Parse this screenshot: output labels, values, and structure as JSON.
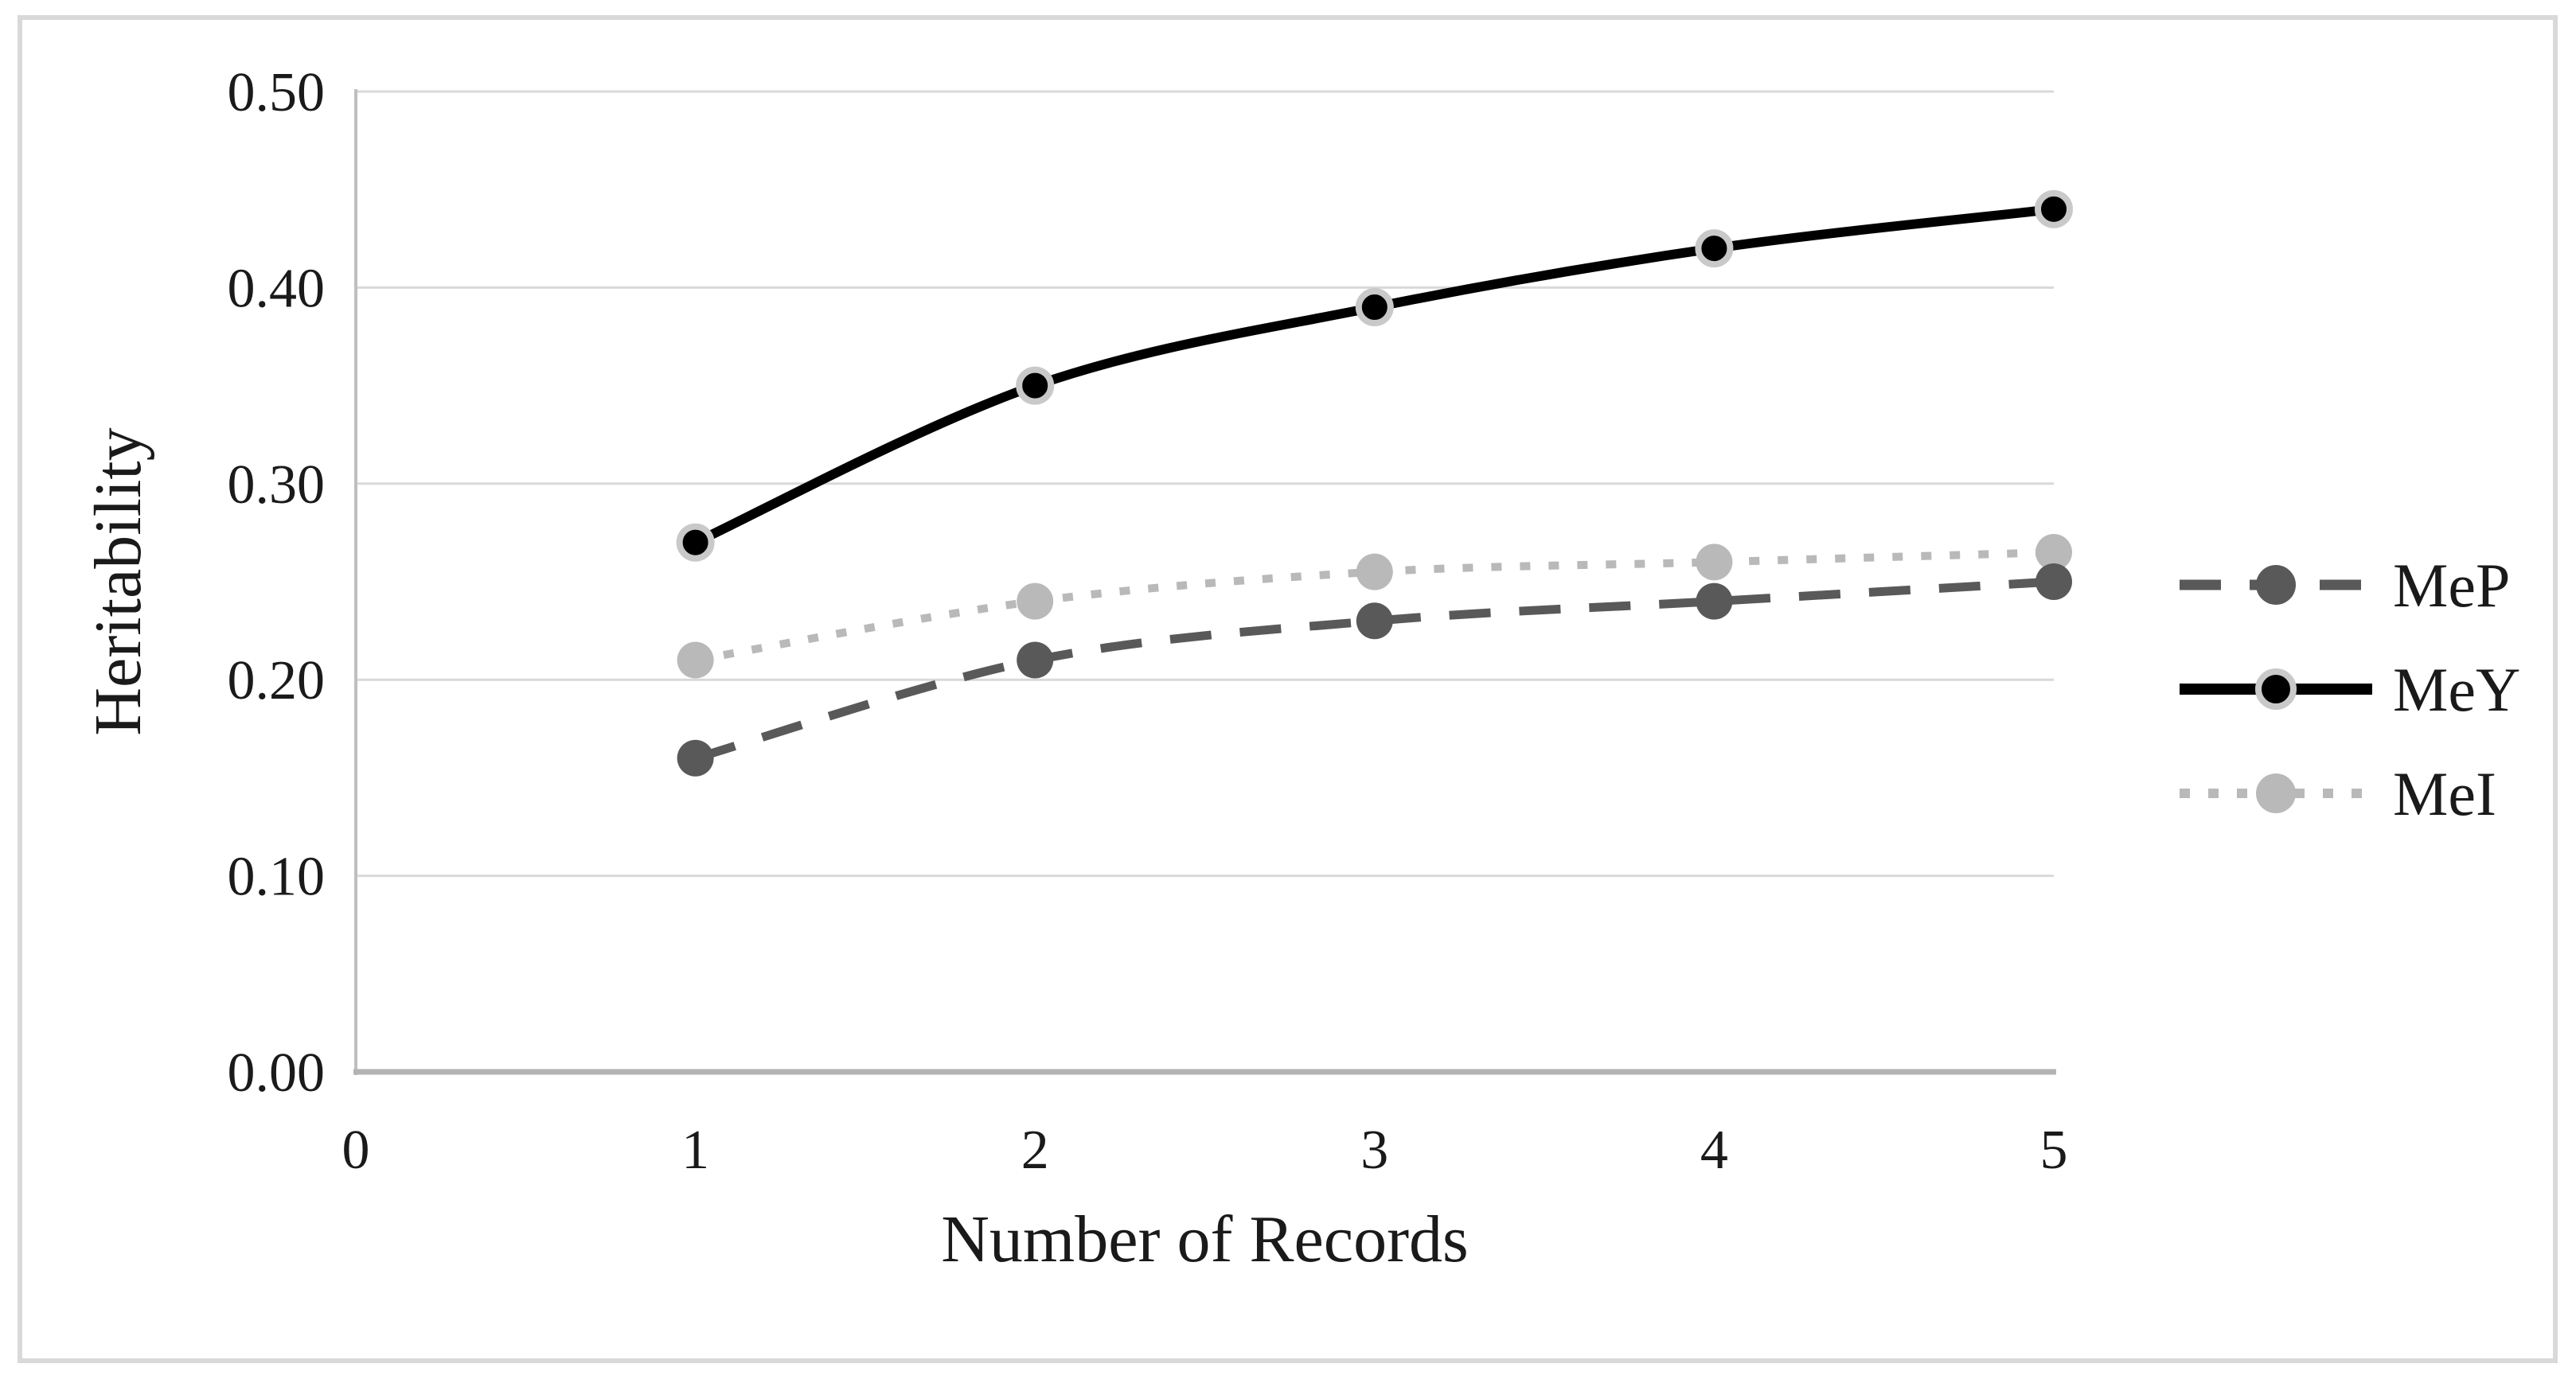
{
  "figure": {
    "background_color": "#ffffff",
    "border_color": "#d9d9d9",
    "text_color": "#1a1a1a",
    "gridline_color": "#d9d9d9",
    "left_axis_color": "#bfbfbf",
    "bottom_axis_color": "#b3b3b3"
  },
  "chart_data": {
    "type": "line",
    "title": "",
    "xlabel": "Number of Records",
    "ylabel": "Heritability",
    "x": [
      1,
      2,
      3,
      4,
      5
    ],
    "series": [
      {
        "name": "MeP",
        "values": [
          0.16,
          0.21,
          0.23,
          0.24,
          0.25
        ],
        "color": "#595959",
        "line_style": "dashed",
        "marker": "circle"
      },
      {
        "name": "MeY",
        "values": [
          0.27,
          0.35,
          0.39,
          0.42,
          0.44
        ],
        "color": "#000000",
        "line_style": "solid",
        "marker": "circle",
        "marker_outline": "#c9c9c9"
      },
      {
        "name": "MeI",
        "values": [
          0.21,
          0.24,
          0.255,
          0.26,
          0.265
        ],
        "color": "#b9b9b9",
        "line_style": "dotted",
        "marker": "circle"
      }
    ],
    "xlim": [
      0,
      5
    ],
    "ylim": [
      0.0,
      0.5
    ],
    "x_ticks": [
      "0",
      "1",
      "2",
      "3",
      "4",
      "5"
    ],
    "y_ticks": [
      "0.00",
      "0.10",
      "0.20",
      "0.30",
      "0.40",
      "0.50"
    ],
    "y_tick_step": 0.1,
    "grid": "horizontal",
    "smooth_lines": true,
    "legend_position": "right",
    "legend_order": [
      "MeP",
      "MeY",
      "MeI"
    ],
    "draw_order": [
      "MeI",
      "MeY",
      "MeP"
    ]
  }
}
